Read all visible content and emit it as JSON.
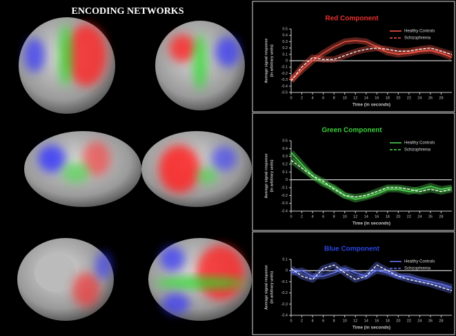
{
  "title": "ENCODING NETWORKS",
  "chart_data": [
    {
      "type": "line",
      "title": "Red Component",
      "title_color": "#e83030",
      "ylabel": [
        "Average signal response",
        "(in arbitrary units)"
      ],
      "xlabel": "Time (in seconds)",
      "x": [
        0,
        2,
        4,
        6,
        8,
        10,
        12,
        14,
        16,
        18,
        20,
        22,
        24,
        26,
        28,
        30
      ],
      "xlim": [
        0,
        30
      ],
      "xticks": [
        0,
        2,
        4,
        6,
        8,
        10,
        12,
        14,
        16,
        18,
        20,
        22,
        24,
        26,
        28
      ],
      "ylim": [
        -0.5,
        0.5
      ],
      "yticks": [
        -0.5,
        -0.4,
        -0.3,
        -0.2,
        -0.1,
        0,
        0.1,
        0.2,
        0.3,
        0.4,
        0.5
      ],
      "series": [
        {
          "name": "Healthy Controls",
          "color": "#ff5a4a",
          "style": "solid",
          "values": [
            -0.3,
            -0.15,
            0.0,
            0.12,
            0.22,
            0.3,
            0.32,
            0.3,
            0.22,
            0.13,
            0.1,
            0.12,
            0.15,
            0.16,
            0.12,
            0.05
          ]
        },
        {
          "name": "Schizophrenia",
          "color": "#ff5a4a",
          "style": "dashed",
          "values": [
            -0.32,
            -0.1,
            0.05,
            0.02,
            0.02,
            0.08,
            0.14,
            0.18,
            0.2,
            0.18,
            0.15,
            0.15,
            0.18,
            0.2,
            0.15,
            0.1
          ]
        }
      ]
    },
    {
      "type": "line",
      "title": "Green Component",
      "title_color": "#3ad03a",
      "ylabel": [
        "Average signal response",
        "(in arbitrary units)"
      ],
      "xlabel": "Time (in seconds)",
      "x": [
        0,
        2,
        4,
        6,
        8,
        10,
        12,
        14,
        16,
        18,
        20,
        22,
        24,
        26,
        28,
        30
      ],
      "xlim": [
        0,
        30
      ],
      "xticks": [
        0,
        2,
        4,
        6,
        8,
        10,
        12,
        14,
        16,
        18,
        20,
        22,
        24,
        26,
        28
      ],
      "ylim": [
        -0.4,
        0.5
      ],
      "yticks": [
        -0.4,
        -0.3,
        -0.2,
        -0.1,
        0,
        0.1,
        0.2,
        0.3,
        0.4,
        0.5
      ],
      "series": [
        {
          "name": "Healthy Controls",
          "color": "#55dd55",
          "style": "solid",
          "values": [
            0.35,
            0.2,
            0.05,
            -0.05,
            -0.1,
            -0.2,
            -0.25,
            -0.22,
            -0.18,
            -0.12,
            -0.12,
            -0.15,
            -0.12,
            -0.08,
            -0.12,
            -0.1
          ]
        },
        {
          "name": "Schizophrenia",
          "color": "#55dd55",
          "style": "dashed",
          "values": [
            0.25,
            0.15,
            0.05,
            -0.02,
            -0.12,
            -0.2,
            -0.22,
            -0.2,
            -0.15,
            -0.1,
            -0.1,
            -0.12,
            -0.15,
            -0.12,
            -0.15,
            -0.12
          ]
        }
      ]
    },
    {
      "type": "line",
      "title": "Blue Component",
      "title_color": "#2a44e0",
      "ylabel": [
        "Average signal response",
        "(in arbitrary units)"
      ],
      "xlabel": "Time (in seconds)",
      "x": [
        0,
        2,
        4,
        6,
        8,
        10,
        12,
        14,
        16,
        18,
        20,
        22,
        24,
        26,
        28,
        30
      ],
      "xlim": [
        0,
        30
      ],
      "xticks": [
        0,
        2,
        4,
        6,
        8,
        10,
        12,
        14,
        16,
        18,
        20,
        22,
        24,
        26,
        28
      ],
      "ylim": [
        -0.4,
        0.1
      ],
      "yticks": [
        -0.4,
        -0.3,
        -0.2,
        -0.1,
        0,
        0.1
      ],
      "series": [
        {
          "name": "Healthy Controls",
          "color": "#6a7cff",
          "style": "solid",
          "values": [
            -0.02,
            0.0,
            -0.05,
            -0.05,
            -0.02,
            0.02,
            -0.02,
            -0.05,
            0.0,
            -0.02,
            -0.05,
            -0.05,
            -0.08,
            -0.1,
            -0.12,
            -0.15
          ]
        },
        {
          "name": "Schizophrenia",
          "color": "#6a7cff",
          "style": "dashed",
          "values": [
            0.02,
            -0.05,
            -0.08,
            0.02,
            0.05,
            -0.02,
            -0.08,
            -0.05,
            0.05,
            0.0,
            -0.05,
            -0.08,
            -0.1,
            -0.12,
            -0.15,
            -0.18
          ]
        }
      ]
    }
  ]
}
